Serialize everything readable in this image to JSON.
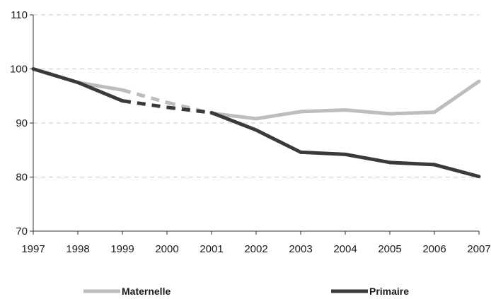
{
  "chart_data": {
    "type": "line",
    "x": [
      "1997",
      "1998",
      "1999",
      "2000",
      "2001",
      "2002",
      "2003",
      "2004",
      "2005",
      "2006",
      "2007"
    ],
    "ylim": [
      70,
      110
    ],
    "yticks": [
      70,
      80,
      90,
      100,
      110
    ],
    "grid": true,
    "legend_position": "bottom",
    "title": "",
    "xlabel": "",
    "ylabel": "",
    "series": [
      {
        "name": "Maternelle",
        "color": "#bdbdbd",
        "values": [
          100,
          97.5,
          96.1,
          93.8,
          91.8,
          90.8,
          92.1,
          92.4,
          91.7,
          92.0,
          97.7
        ],
        "dashed_segments": [
          [
            1999,
            2001
          ]
        ]
      },
      {
        "name": "Primaire",
        "color": "#3a3a3a",
        "values": [
          100,
          97.5,
          94.1,
          92.9,
          91.9,
          88.7,
          84.6,
          84.2,
          82.7,
          82.3,
          80.1
        ],
        "dashed_segments": [
          [
            1999,
            2001
          ]
        ]
      }
    ]
  }
}
